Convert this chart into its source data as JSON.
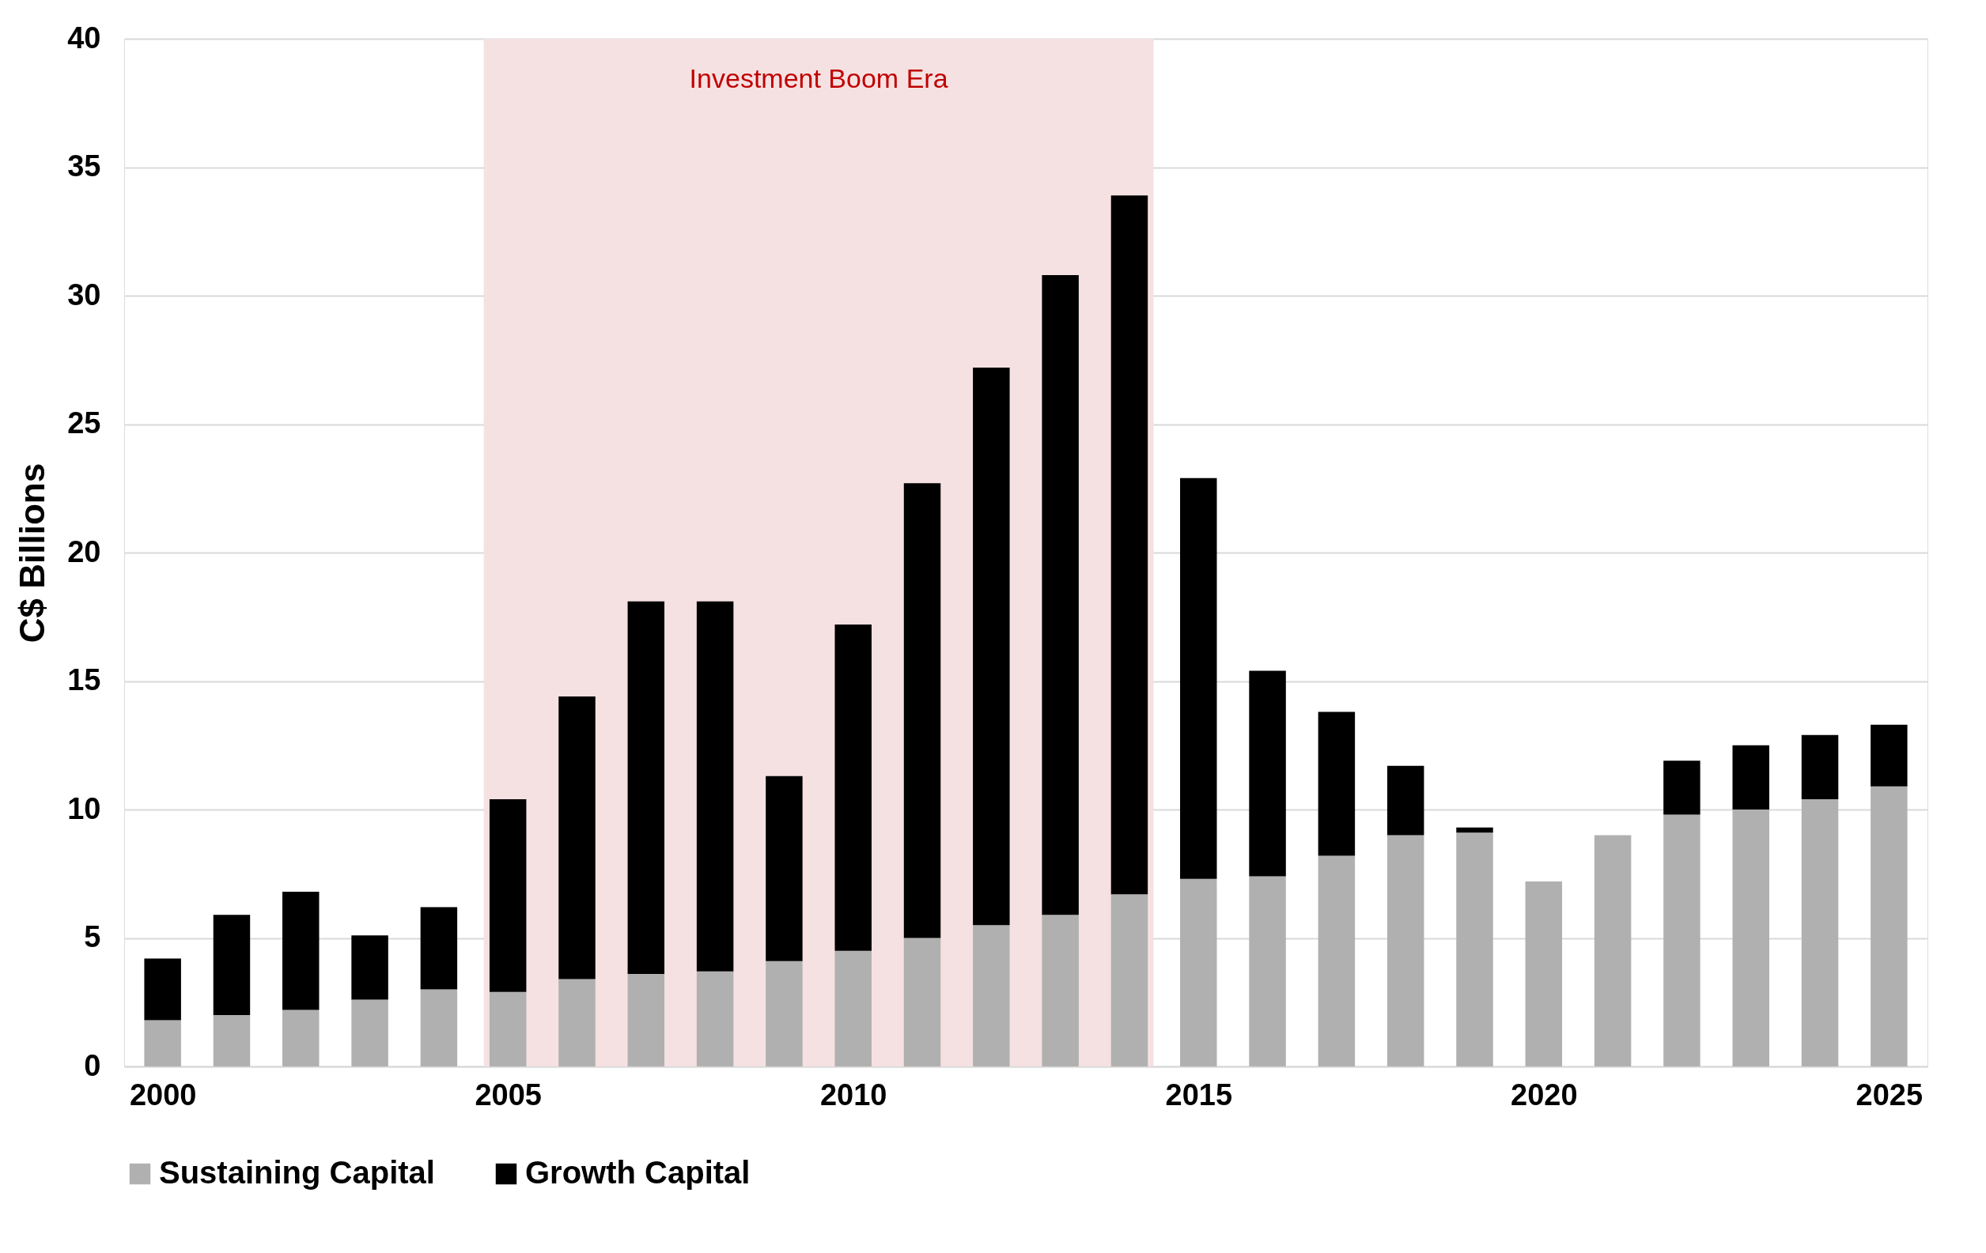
{
  "chart_data": {
    "type": "bar",
    "stacked": true,
    "ylabel": "C$ Billions",
    "x": [
      2000,
      2001,
      2002,
      2003,
      2004,
      2005,
      2006,
      2007,
      2008,
      2009,
      2010,
      2011,
      2012,
      2013,
      2014,
      2015,
      2016,
      2017,
      2018,
      2019,
      2020,
      2021,
      2022,
      2023,
      2024,
      2025
    ],
    "series": [
      {
        "name": "Sustaining Capital",
        "color": "#b0b0b0",
        "values": [
          1.8,
          2.0,
          2.2,
          2.6,
          3.0,
          2.9,
          3.4,
          3.6,
          3.7,
          4.1,
          4.5,
          5.0,
          5.5,
          5.9,
          6.7,
          7.3,
          7.4,
          8.2,
          9.0,
          9.1,
          7.2,
          9.0,
          9.8,
          10.0,
          10.4,
          10.9
        ]
      },
      {
        "name": "Growth Capital",
        "color": "#000000",
        "values": [
          2.4,
          3.9,
          4.6,
          2.5,
          3.2,
          7.5,
          11.0,
          14.5,
          14.4,
          7.2,
          12.7,
          17.7,
          21.7,
          24.9,
          27.2,
          15.6,
          8.0,
          5.6,
          2.7,
          0.2,
          0,
          0,
          2.1,
          2.5,
          2.5,
          2.4
        ]
      }
    ],
    "xlim": [
      1999.5,
      2025.5
    ],
    "xticks": [
      2000,
      2005,
      2010,
      2015,
      2020,
      2025
    ],
    "ylim": [
      0,
      40
    ],
    "yticks": [
      0,
      5,
      10,
      15,
      20,
      25,
      30,
      35,
      40
    ],
    "bands": [
      {
        "axis": "x",
        "from": 2004.65,
        "to": 2014.35,
        "label": "Investment Boom Era",
        "color": "#f5e1e2"
      }
    ],
    "grid": "y",
    "legend": "bottom"
  }
}
